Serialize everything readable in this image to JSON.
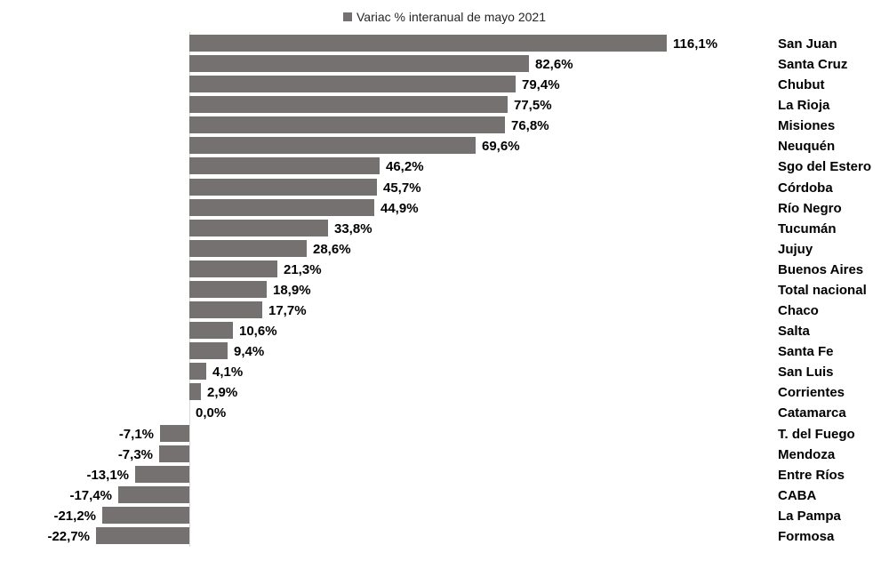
{
  "chart_data": {
    "type": "bar",
    "orientation": "horizontal",
    "title": "",
    "legend": "Variac % interanual de mayo 2021",
    "legend_position": "top-center",
    "bar_color": "#767171",
    "axis_color": "#d9d9d9",
    "value_format": "percent_comma_decimal",
    "xlim": [
      -22.7,
      116.1
    ],
    "grid": false,
    "categories": [
      "San Juan",
      "Santa Cruz",
      "Chubut",
      "La Rioja",
      "Misiones",
      "Neuquén",
      "Sgo del Estero",
      "Córdoba",
      "Río Negro",
      "Tucumán",
      "Jujuy",
      "Buenos Aires",
      "Total nacional",
      "Chaco",
      "Salta",
      "Santa Fe",
      "San Luis",
      "Corrientes",
      "Catamarca",
      "T. del Fuego",
      "Mendoza",
      "Entre Ríos",
      "CABA",
      "La Pampa",
      "Formosa"
    ],
    "values": [
      116.1,
      82.6,
      79.4,
      77.5,
      76.8,
      69.6,
      46.2,
      45.7,
      44.9,
      33.8,
      28.6,
      21.3,
      18.9,
      17.7,
      10.6,
      9.4,
      4.1,
      2.9,
      0.0,
      -7.1,
      -7.3,
      -13.1,
      -17.4,
      -21.2,
      -22.7
    ],
    "value_labels": [
      "116,1%",
      "82,6%",
      "79,4%",
      "77,5%",
      "76,8%",
      "69,6%",
      "46,2%",
      "45,7%",
      "44,9%",
      "33,8%",
      "28,6%",
      "21,3%",
      "18,9%",
      "17,7%",
      "10,6%",
      "9,4%",
      "4,1%",
      "2,9%",
      "0,0%",
      "-7,1%",
      "-7,3%",
      "-13,1%",
      "-17,4%",
      "-21,2%",
      "-22,7%"
    ]
  }
}
